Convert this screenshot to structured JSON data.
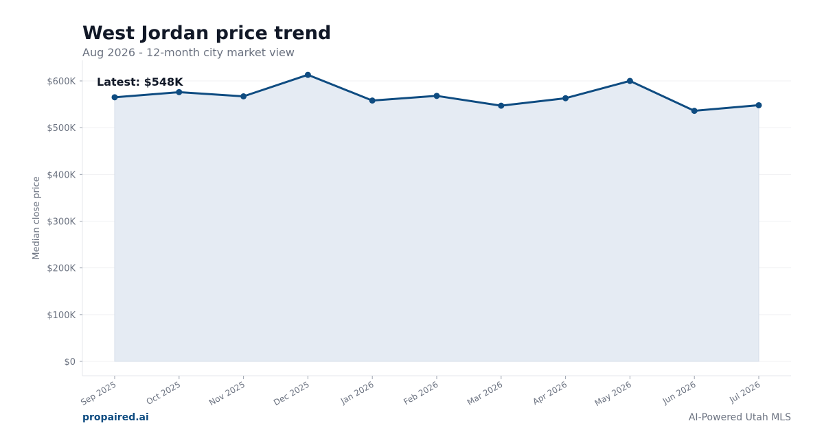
{
  "header": {
    "title": "West Jordan price trend",
    "subtitle": "Aug 2026 - 12-month city market view"
  },
  "footer": {
    "brand": "propaired.ai",
    "tagline": "AI-Powered Utah MLS"
  },
  "colors": {
    "line": "#0f4c81",
    "fill": "#e5ebf3",
    "grid": "#f0f1f3",
    "tick_text": "#6b7280",
    "title": "#111827",
    "brand": "#0f4c81"
  },
  "chart_data": {
    "type": "area",
    "title": "West Jordan price trend",
    "subtitle": "Aug 2026 - 12-month city market view",
    "xlabel": "",
    "ylabel": "Median close price",
    "categories": [
      "Sep 2025",
      "Oct 2025",
      "Nov 2025",
      "Dec 2025",
      "Jan 2026",
      "Feb 2026",
      "Mar 2026",
      "Apr 2026",
      "May 2026",
      "Jun 2026",
      "Jul 2026"
    ],
    "series": [
      {
        "values": [
          565000,
          576000,
          567000,
          613000,
          558000,
          568000,
          547000,
          563000,
          600000,
          536000,
          548000
        ]
      }
    ],
    "ylim": [
      0,
      645000
    ],
    "yticks": [
      0,
      100000,
      200000,
      300000,
      400000,
      500000,
      600000
    ],
    "ytick_labels": [
      "$0",
      "$100K",
      "$200K",
      "$300K",
      "$400K",
      "$500K",
      "$600K"
    ],
    "grid": true,
    "annotation": "Latest: $548K",
    "markers": true
  }
}
